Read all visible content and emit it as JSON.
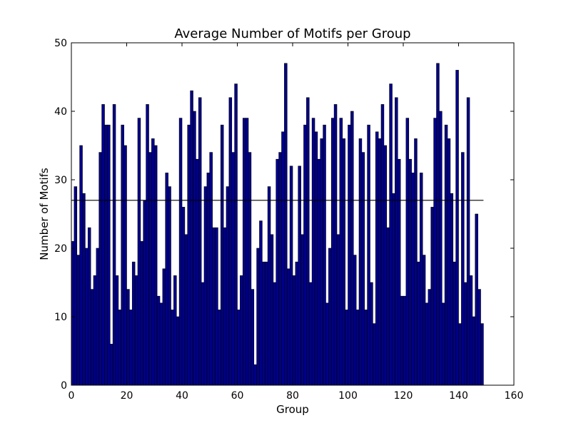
{
  "chart_data": {
    "type": "bar",
    "title": "Average Number of Motifs per Group",
    "xlabel": "Group",
    "ylabel": "Number of Motifs",
    "xlim": [
      0,
      160
    ],
    "ylim": [
      0,
      50
    ],
    "xticks": [
      0,
      20,
      40,
      60,
      80,
      100,
      120,
      140,
      160
    ],
    "yticks": [
      0,
      10,
      20,
      30,
      40,
      50
    ],
    "grid": false,
    "legend": "none",
    "bar_color": "#00008b",
    "line_color": "#000000",
    "x": [
      0,
      1,
      2,
      3,
      4,
      5,
      6,
      7,
      8,
      9,
      10,
      11,
      12,
      13,
      14,
      15,
      16,
      17,
      18,
      19,
      20,
      21,
      22,
      23,
      24,
      25,
      26,
      27,
      28,
      29,
      30,
      31,
      32,
      33,
      34,
      35,
      36,
      37,
      38,
      39,
      40,
      41,
      42,
      43,
      44,
      45,
      46,
      47,
      48,
      49,
      50,
      51,
      52,
      53,
      54,
      55,
      56,
      57,
      58,
      59,
      60,
      61,
      62,
      63,
      64,
      65,
      66,
      67,
      68,
      69,
      70,
      71,
      72,
      73,
      74,
      75,
      76,
      77,
      78,
      79,
      80,
      81,
      82,
      83,
      84,
      85,
      86,
      87,
      88,
      89,
      90,
      91,
      92,
      93,
      94,
      95,
      96,
      97,
      98,
      99,
      100,
      101,
      102,
      103,
      104,
      105,
      106,
      107,
      108,
      109,
      110,
      111,
      112,
      113,
      114,
      115,
      116,
      117,
      118,
      119,
      120,
      121,
      122,
      123,
      124,
      125,
      126,
      127,
      128,
      129,
      130,
      131,
      132,
      133,
      134,
      135,
      136,
      137,
      138,
      139,
      140,
      141,
      142,
      143,
      144,
      145,
      146,
      147,
      148
    ],
    "values": [
      21,
      29,
      19,
      35,
      28,
      20,
      23,
      14,
      16,
      20,
      34,
      41,
      38,
      38,
      6,
      41,
      16,
      11,
      38,
      35,
      14,
      11,
      18,
      16,
      39,
      21,
      27,
      41,
      34,
      36,
      35,
      13,
      12,
      17,
      31,
      29,
      11,
      16,
      10,
      39,
      26,
      22,
      38,
      43,
      40,
      33,
      42,
      15,
      29,
      31,
      34,
      23,
      23,
      11,
      38,
      23,
      29,
      42,
      34,
      44,
      11,
      16,
      39,
      39,
      34,
      14,
      3,
      20,
      24,
      18,
      18,
      29,
      22,
      15,
      33,
      34,
      37,
      47,
      17,
      32,
      16,
      18,
      32,
      22,
      38,
      42,
      15,
      39,
      37,
      33,
      36,
      38,
      12,
      20,
      39,
      41,
      22,
      39,
      36,
      11,
      38,
      40,
      19,
      11,
      36,
      34,
      11,
      38,
      15,
      9,
      37,
      36,
      41,
      35,
      23,
      44,
      28,
      42,
      33,
      13,
      13,
      39,
      33,
      31,
      36,
      18,
      31,
      19,
      12,
      14,
      26,
      39,
      47,
      40,
      12,
      38,
      36,
      28,
      18,
      46,
      9,
      34,
      15,
      42,
      16,
      10,
      25,
      14,
      9
    ],
    "reference_line": {
      "y": 27,
      "x_range": [
        0,
        149
      ]
    }
  }
}
